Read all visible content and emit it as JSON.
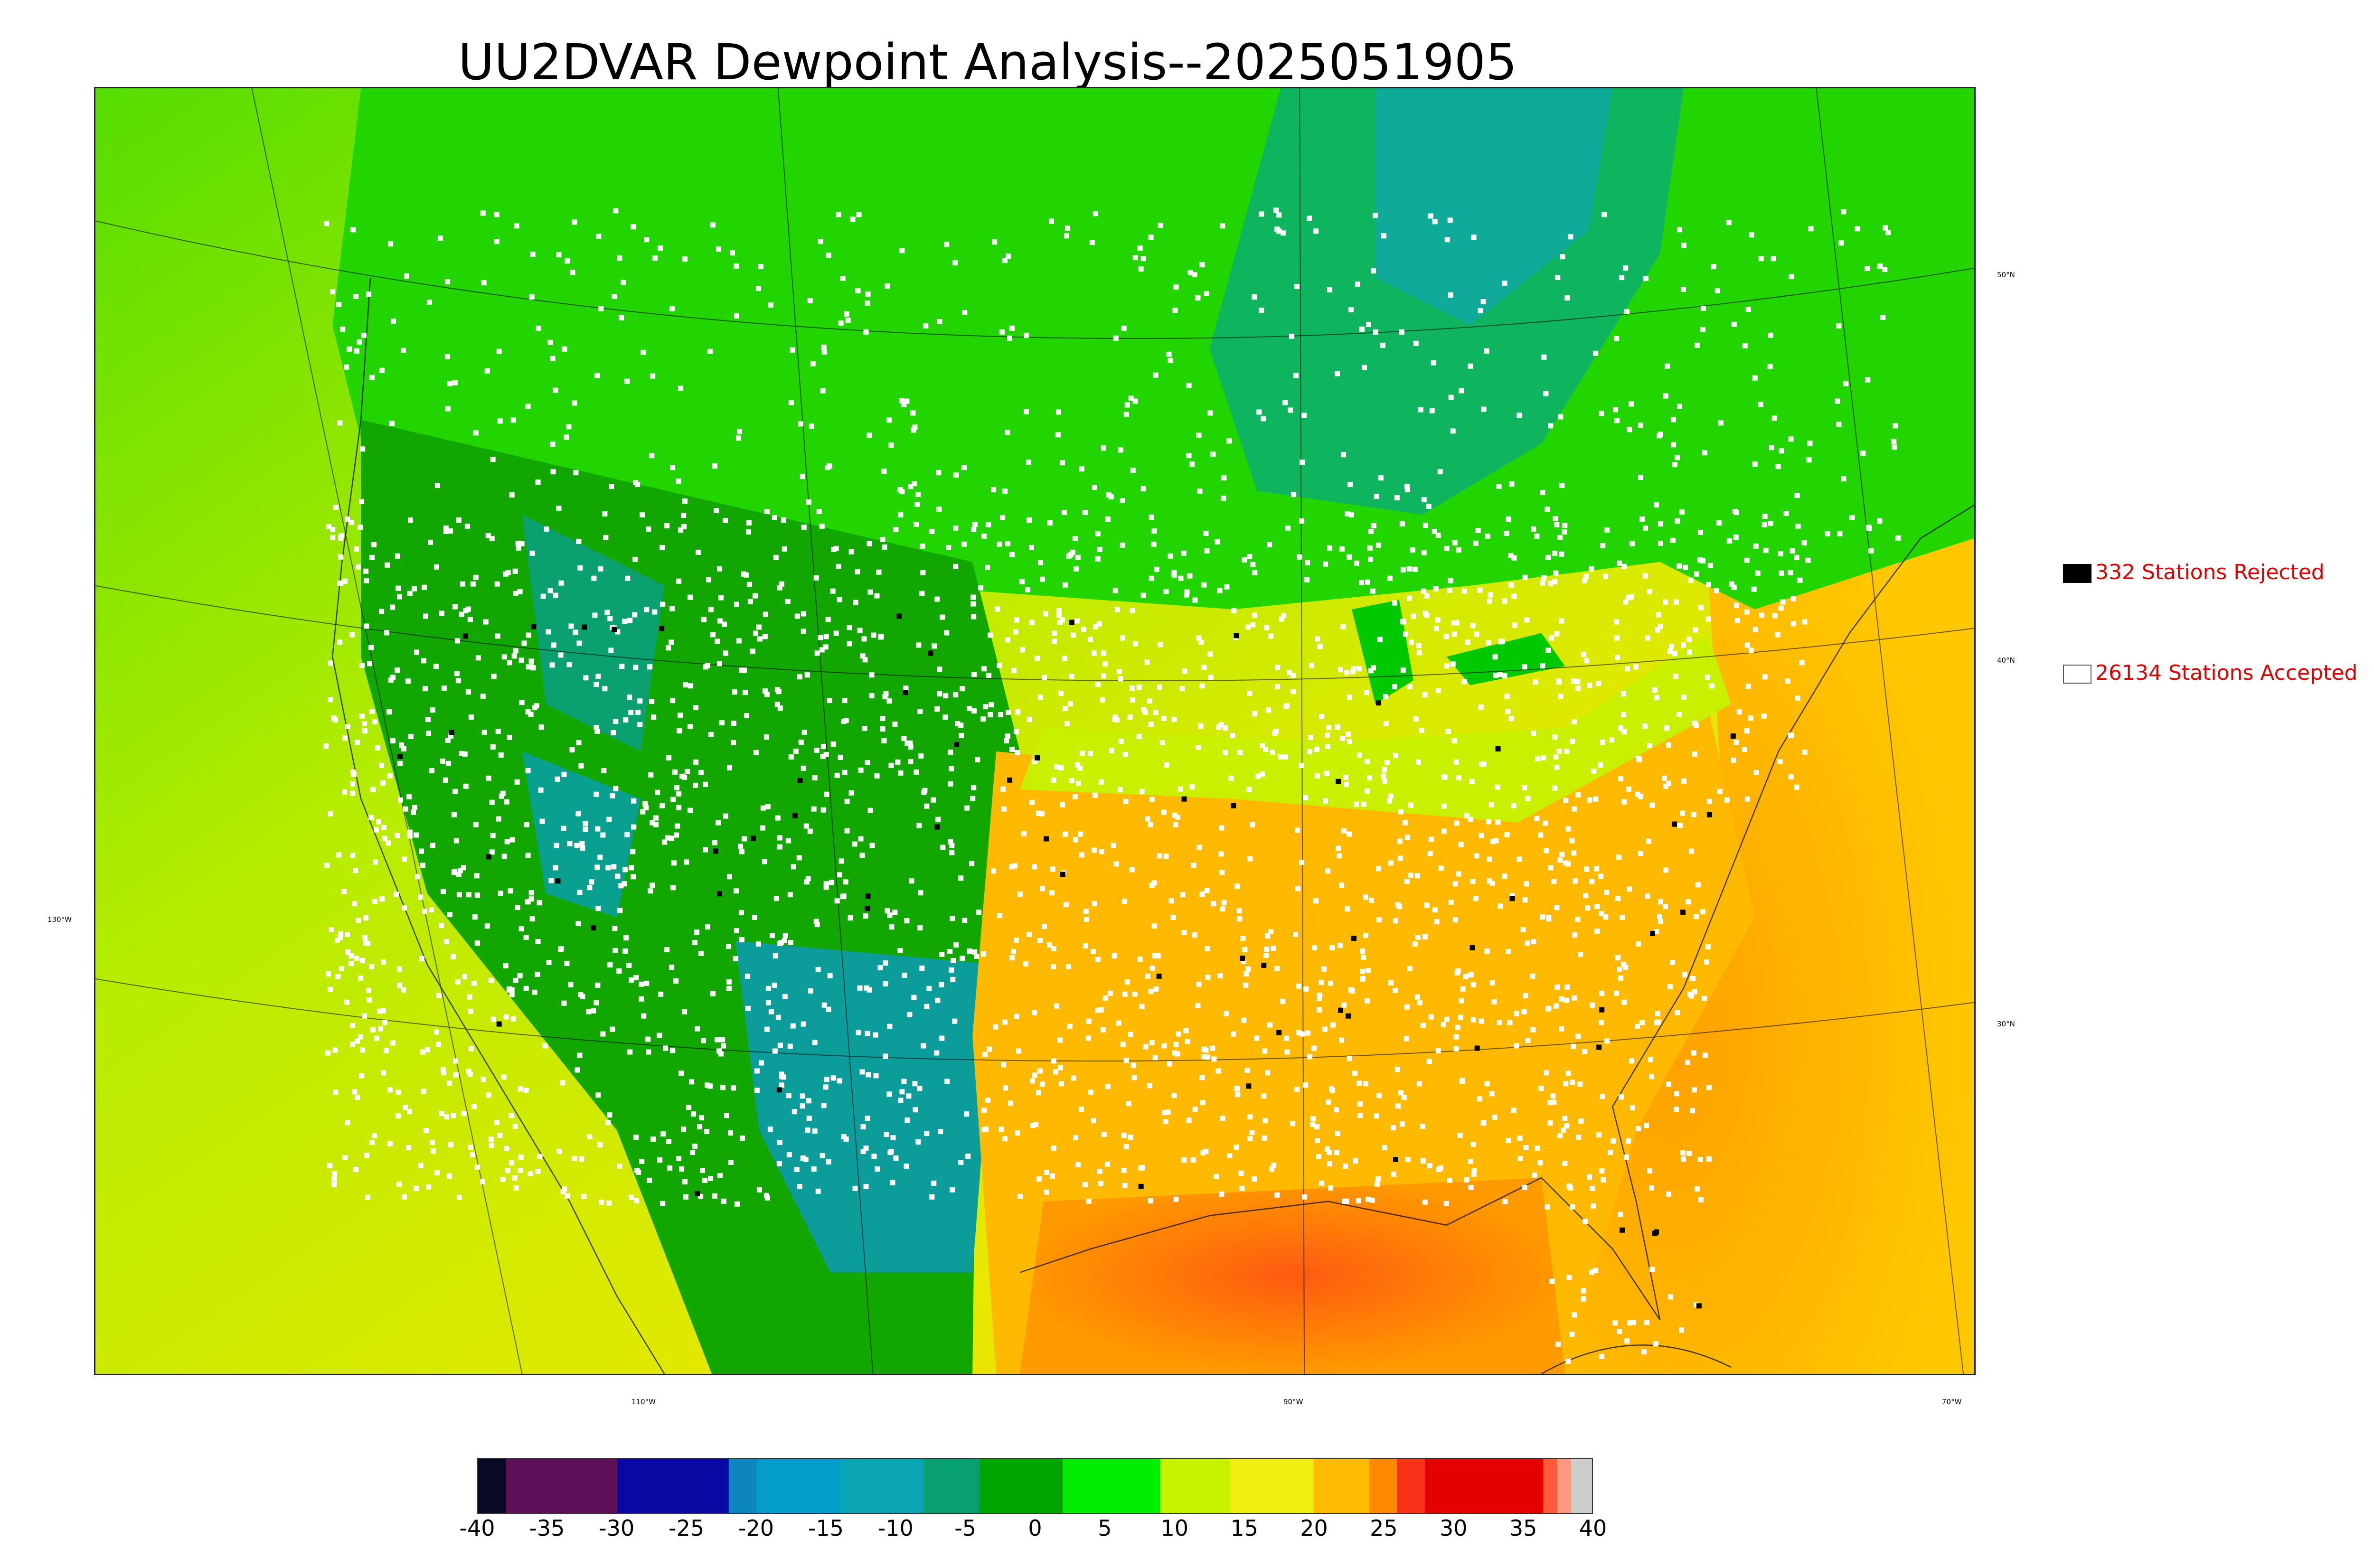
{
  "title": "UU2DVAR Dewpoint Analysis--2025051905",
  "map": {
    "lat_labels": [
      "50°N",
      "40°N",
      "30°N"
    ],
    "lon_labels": [
      "130°W",
      "110°W",
      "90°W",
      "70°W"
    ]
  },
  "legend": {
    "rejected": {
      "label": "332 Stations Rejected",
      "color": "#000000"
    },
    "accepted": {
      "label": "26134 Stations Accepted",
      "color": "#ffffff"
    }
  },
  "colorbar": {
    "ticks": [
      "-40",
      "-35",
      "-30",
      "-25",
      "-20",
      "-15",
      "-10",
      "-5",
      "0",
      "5",
      "10",
      "15",
      "20",
      "25",
      "30",
      "35",
      "40"
    ],
    "range": [
      -40,
      40
    ],
    "stops": [
      {
        "from": -40,
        "to": -38,
        "color": "#0a0a26"
      },
      {
        "from": -38,
        "to": -30,
        "color": "#5e1158"
      },
      {
        "from": -30,
        "to": -22,
        "color": "#0808a2"
      },
      {
        "from": -22,
        "to": -20,
        "color": "#0c86bc"
      },
      {
        "from": -20,
        "to": -14,
        "color": "#049cc8"
      },
      {
        "from": -14,
        "to": -8,
        "color": "#0aa6b4"
      },
      {
        "from": -8,
        "to": -4,
        "color": "#08a070"
      },
      {
        "from": -4,
        "to": 2,
        "color": "#00a400"
      },
      {
        "from": 2,
        "to": 9,
        "color": "#00ee00"
      },
      {
        "from": 9,
        "to": 14,
        "color": "#c6f200"
      },
      {
        "from": 14,
        "to": 20,
        "color": "#f0ee10"
      },
      {
        "from": 20,
        "to": 24,
        "color": "#ffbb00"
      },
      {
        "from": 24,
        "to": 26,
        "color": "#ff8a00"
      },
      {
        "from": 26,
        "to": 28,
        "color": "#f83018"
      },
      {
        "from": 28,
        "to": 36.5,
        "color": "#e40000"
      },
      {
        "from": 36.5,
        "to": 37.5,
        "color": "#ff5a3c"
      },
      {
        "from": 37.5,
        "to": 38.5,
        "color": "#ff9a80"
      },
      {
        "from": 38.5,
        "to": 40,
        "color": "#cccccc"
      }
    ]
  }
}
